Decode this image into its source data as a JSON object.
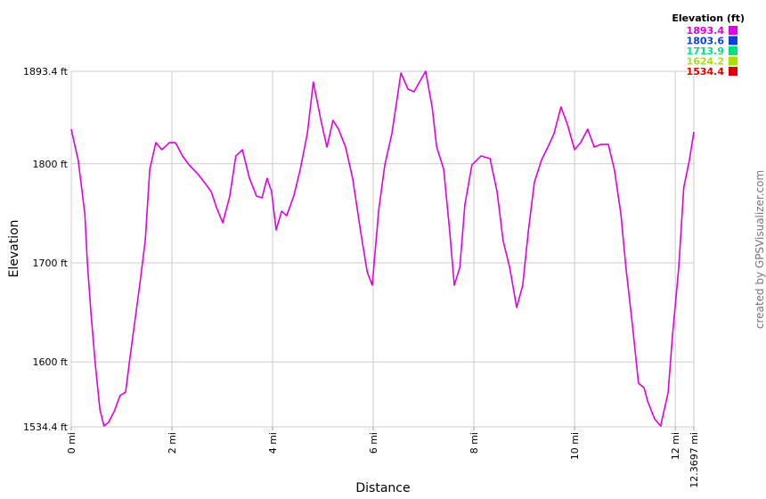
{
  "chart_data": {
    "type": "line",
    "x_label": "Distance",
    "y_label": "Elevation",
    "legend_title": "Elevation (ft)",
    "credit": "created by GPSVisualizer.com",
    "color_scale": [
      {
        "value": 1893.4,
        "color": "#e000e0"
      },
      {
        "value": 1803.6,
        "color": "#1040d8"
      },
      {
        "value": 1713.9,
        "color": "#00e080"
      },
      {
        "value": 1624.2,
        "color": "#a8e000"
      },
      {
        "value": 1534.4,
        "color": "#e00000"
      }
    ],
    "x": [
      0,
      0.14,
      0.27,
      0.32,
      0.39,
      0.48,
      0.57,
      0.65,
      0.74,
      0.85,
      0.97,
      1.08,
      1.17,
      1.26,
      1.36,
      1.47,
      1.56,
      1.68,
      1.8,
      1.95,
      2.07,
      2.21,
      2.34,
      2.51,
      2.65,
      2.78,
      2.88,
      3.01,
      3.15,
      3.27,
      3.4,
      3.54,
      3.68,
      3.79,
      3.89,
      3.98,
      4.07,
      4.18,
      4.28,
      4.42,
      4.55,
      4.69,
      4.81,
      4.96,
      5.08,
      5.2,
      5.31,
      5.45,
      5.59,
      5.75,
      5.88,
      5.98,
      6.11,
      6.23,
      6.37,
      6.55,
      6.69,
      6.81,
      6.92,
      7.04,
      7.17,
      7.26,
      7.4,
      7.52,
      7.61,
      7.72,
      7.82,
      7.96,
      8.14,
      8.32,
      8.46,
      8.58,
      8.71,
      8.85,
      8.97,
      9.08,
      9.2,
      9.34,
      9.47,
      9.59,
      9.73,
      9.86,
      10.0,
      10.12,
      10.26,
      10.39,
      10.53,
      10.67,
      10.79,
      10.92,
      11.02,
      11.15,
      11.27,
      11.38,
      11.45,
      11.59,
      11.71,
      11.86,
      11.94,
      12.07,
      12.17,
      12.28,
      12.37
    ],
    "values": [
      1834.9,
      1803.0,
      1749.4,
      1700.0,
      1650.4,
      1596.5,
      1551.5,
      1535.3,
      1538.9,
      1549.6,
      1565.9,
      1569.4,
      1605.5,
      1639.6,
      1677.4,
      1722.4,
      1794.4,
      1821.4,
      1814.2,
      1821.4,
      1821.4,
      1807.9,
      1798.9,
      1789.9,
      1780.9,
      1771.9,
      1756.6,
      1740.4,
      1767.4,
      1807.9,
      1814.2,
      1785.4,
      1767.4,
      1765.6,
      1785.4,
      1771.9,
      1733.2,
      1752.1,
      1747.6,
      1767.4,
      1794.4,
      1830.4,
      1882.6,
      1843.9,
      1816.9,
      1843.9,
      1834.9,
      1816.9,
      1785.4,
      1731.4,
      1690.9,
      1677.4,
      1753.9,
      1798.9,
      1830.4,
      1891.6,
      1875.4,
      1872.7,
      1882.6,
      1893.4,
      1857.4,
      1816.9,
      1794.4,
      1731.4,
      1677.4,
      1695.4,
      1758.4,
      1798.9,
      1807.9,
      1805.2,
      1771.9,
      1722.4,
      1695.4,
      1654.9,
      1677.4,
      1731.4,
      1780.9,
      1803.4,
      1816.9,
      1830.4,
      1857.4,
      1839.4,
      1814.2,
      1821.4,
      1834.9,
      1816.9,
      1819.6,
      1819.6,
      1794.4,
      1749.4,
      1695.4,
      1636.9,
      1578.4,
      1573.9,
      1560.4,
      1542.4,
      1535.2,
      1569.4,
      1623.4,
      1695.4,
      1776.4,
      1803.4,
      1832.2
    ],
    "xlim": [
      0,
      12.3697
    ],
    "ylim": [
      1534.4,
      1893.4
    ],
    "xticks": [
      {
        "value": 0,
        "label": "0 mi"
      },
      {
        "value": 2,
        "label": "2 mi"
      },
      {
        "value": 4,
        "label": "4 mi"
      },
      {
        "value": 6,
        "label": "6 mi"
      },
      {
        "value": 8,
        "label": "8 mi"
      },
      {
        "value": 10,
        "label": "10 mi"
      },
      {
        "value": 12,
        "label": "12 mi"
      },
      {
        "value": 12.3697,
        "label": "12.3697 mi"
      }
    ],
    "yticks": [
      {
        "value": 1534.4,
        "label": "1534.4 ft"
      },
      {
        "value": 1600,
        "label": "1600 ft"
      },
      {
        "value": 1700,
        "label": "1700 ft"
      },
      {
        "value": 1800,
        "label": "1800 ft"
      },
      {
        "value": 1893.4,
        "label": "1893.4 ft"
      }
    ],
    "grid": true
  }
}
